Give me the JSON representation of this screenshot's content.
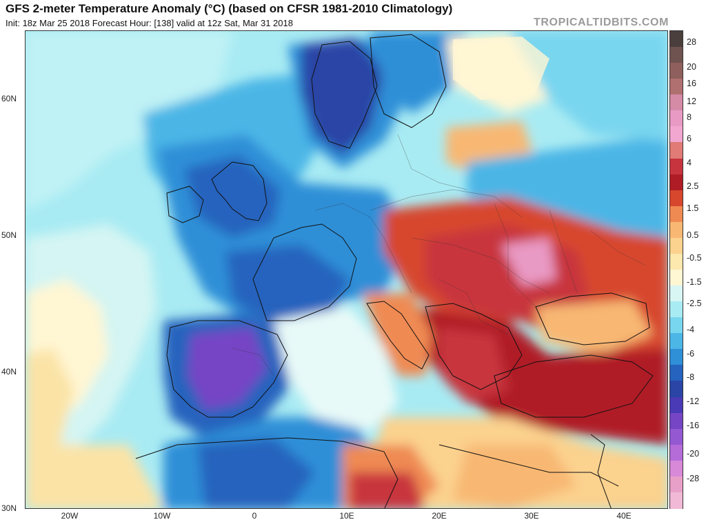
{
  "header": {
    "title": "GFS 2-meter Temperature Anomaly (°C) (based on CFSR 1981-2010 Climatology)",
    "subtitle": "Init: 18z Mar 25 2018   Forecast Hour: [138]   valid at 12z Sat, Mar 31 2018",
    "brand": "TROPICALTIDBITS.COM"
  },
  "map": {
    "lat_labels": [
      "60N",
      "50N",
      "40N",
      "30N"
    ],
    "lon_labels": [
      "20W",
      "10W",
      "0",
      "10E",
      "20E",
      "30E",
      "40E"
    ]
  },
  "colorbar": {
    "labels": [
      "28",
      "20",
      "16",
      "12",
      "8",
      "6",
      "4",
      "2.5",
      "1.5",
      "0.5",
      "-0.5",
      "-1.5",
      "-2.5",
      "-4",
      "-6",
      "-8",
      "-12",
      "-16",
      "-20",
      "-28"
    ],
    "colors": [
      "#4b3f3e",
      "#6e5350",
      "#8e5f5c",
      "#b07070",
      "#d58aa6",
      "#e99ac4",
      "#f2a7d0",
      "#e07b75",
      "#c8343e",
      "#b01c25",
      "#d7472d",
      "#ef8a52",
      "#f8b873",
      "#fbd28e",
      "#fde8ae",
      "#fff6d3",
      "#d8f6f4",
      "#a9ebf3",
      "#79d6ef",
      "#4cb6e6",
      "#2f8fd7",
      "#2563be",
      "#2a45a6",
      "#4a3ab6",
      "#7645c5",
      "#9558d3",
      "#b56cd9",
      "#d889d8",
      "#e8a0c8",
      "#f1b9d5"
    ]
  }
}
